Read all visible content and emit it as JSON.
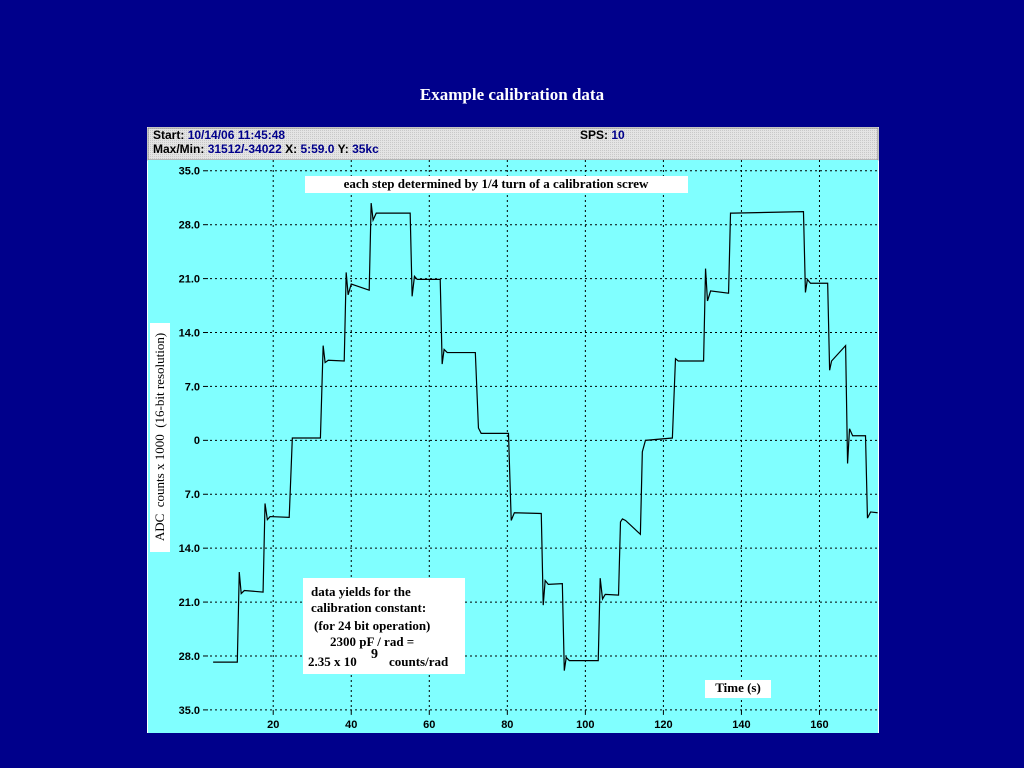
{
  "header": {
    "start_label": "Start:",
    "start": "10/14/06 11:45:48",
    "sps_label": "SPS:",
    "sps": "10",
    "maxmin_label": "Max/Min:",
    "maxmin": "31512/-34022",
    "x_label": "X:",
    "x": "5:59.0",
    "y_label": "Y:",
    "y": "35kc"
  },
  "chart_data": {
    "type": "line",
    "title": "Example calibration data",
    "ylabel": "ADC  counts x 1000  (16-bit resolution)",
    "xlabel": "Time (s)",
    "annotation": "each step determined by 1/4 turn of a calibration screw",
    "note_lines": [
      "data yields for the",
      "calibration constant:",
      "(for 24 bit operation)",
      "2300 pF / rad ="
    ],
    "note_base": "2.35 x 10",
    "note_exp": "9",
    "note_unit": "counts/rad",
    "color": "#000000",
    "grid": true,
    "xlim": [
      3.8,
      175
    ],
    "ylim": [
      -38,
      36.4
    ],
    "xticks": [
      20,
      40,
      60,
      80,
      100,
      120,
      140,
      160
    ],
    "yticks": [
      {
        "value": 35,
        "label": "35.0"
      },
      {
        "value": 28,
        "label": "28.0"
      },
      {
        "value": 21,
        "label": "21.0"
      },
      {
        "value": 14,
        "label": "14.0"
      },
      {
        "value": 7,
        "label": "7.0"
      },
      0,
      {
        "value": -7,
        "label": "7.0"
      },
      {
        "value": -14,
        "label": "14.0"
      },
      {
        "value": -21,
        "label": "21.0"
      },
      {
        "value": -28,
        "label": "28.0"
      },
      {
        "value": -35,
        "label": "35.0"
      }
    ],
    "x": [
      4.6,
      10.8,
      11.3,
      11.8,
      12.6,
      17.4,
      17.9,
      18.5,
      19.2,
      24.1,
      24.9,
      32.1,
      32.8,
      33.3,
      34.1,
      38.2,
      38.7,
      39.2,
      40,
      44.6,
      45.1,
      45.6,
      46.4,
      55.1,
      55.6,
      56.2,
      56.9,
      62.8,
      63.3,
      63.8,
      64.6,
      71.8,
      72.6,
      73.3,
      80.3,
      81,
      81.8,
      88.7,
      89.2,
      89.7,
      90.5,
      94.1,
      94.6,
      95.1,
      95.9,
      103.3,
      103.8,
      104.4,
      105.1,
      108.5,
      109,
      109.5,
      110.3,
      114.1,
      114.6,
      115.4,
      122.3,
      123.1,
      123.8,
      130.3,
      130.8,
      131.3,
      132.1,
      136.7,
      137.2,
      137.9,
      155.9,
      156.4,
      156.9,
      157.7,
      162.1,
      162.6,
      163.1,
      166.7,
      167.2,
      167.7,
      168.5,
      171.8,
      172.3,
      173.1,
      174.9
    ],
    "values": [
      -28.8,
      -28.8,
      -17.1,
      -19.9,
      -19.5,
      -19.7,
      -8.2,
      -10.3,
      -9.9,
      -10,
      0.3,
      0.3,
      12.3,
      10.1,
      10.4,
      10.3,
      21.8,
      18.9,
      20.3,
      19.5,
      30.8,
      28.6,
      29.5,
      29.5,
      18.7,
      21.3,
      20.9,
      20.9,
      9.9,
      11.8,
      11.4,
      11.4,
      1.6,
      0.9,
      0.9,
      -10.4,
      -9.4,
      -9.5,
      -21.4,
      -18.2,
      -18.7,
      -18.6,
      -29.9,
      -28.2,
      -28.6,
      -28.6,
      -17.9,
      -20.6,
      -20,
      -20.1,
      -10.6,
      -10.2,
      -10.4,
      -12.2,
      -1.5,
      0,
      0.3,
      10.6,
      10.3,
      10.3,
      22.3,
      18.1,
      19.4,
      19.1,
      29.5,
      29.5,
      29.7,
      19.2,
      20.9,
      20.4,
      20.4,
      9.1,
      10.3,
      12.3,
      -3,
      1.5,
      0.6,
      0.6,
      -10.1,
      -9.3,
      -9.4
    ]
  }
}
